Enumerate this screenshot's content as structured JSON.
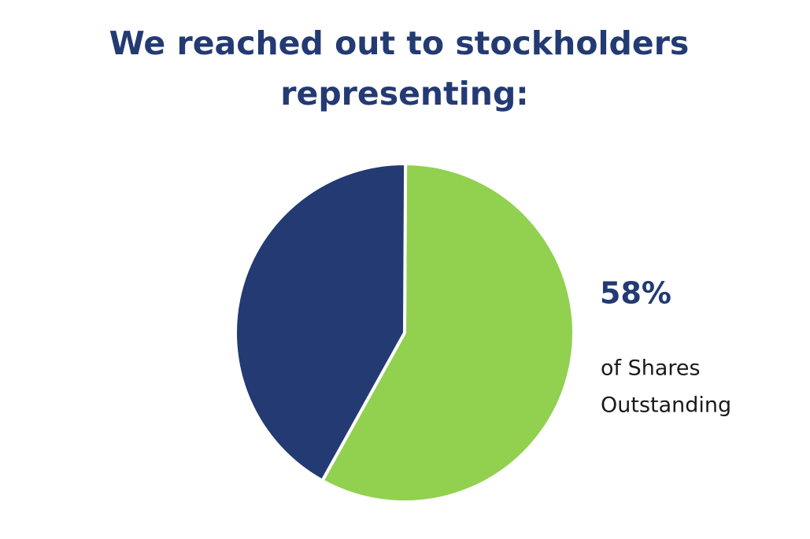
{
  "chart_data": {
    "type": "pie",
    "title": [
      "We reached out to stockholders",
      "representing:"
    ],
    "values": [
      58,
      42
    ],
    "value_labels": [
      "58%",
      null
    ],
    "colors": [
      "#92d050",
      "#233a73"
    ],
    "annotation": [
      "of Shares",
      "Outstanding"
    ]
  }
}
